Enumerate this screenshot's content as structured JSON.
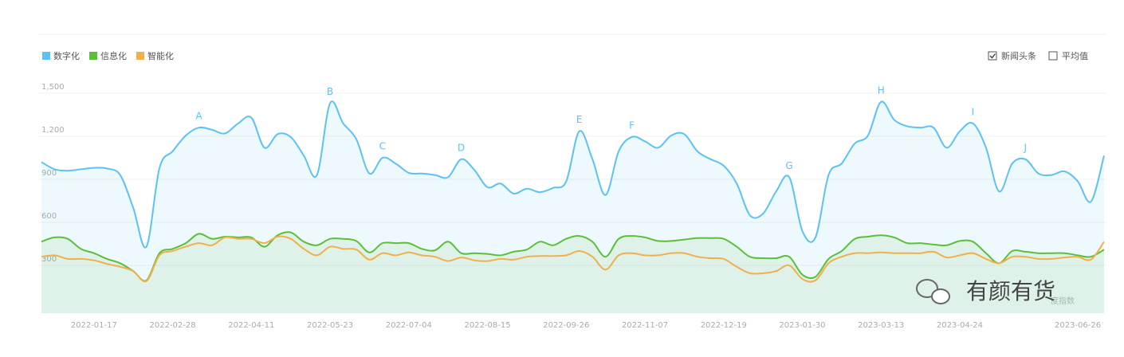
{
  "chart_data": {
    "type": "line",
    "x": [
      "2021-12-20",
      "2021-12-27",
      "2022-01-03",
      "2022-01-10",
      "2022-01-17",
      "2022-01-24",
      "2022-01-31",
      "2022-02-07",
      "2022-02-14",
      "2022-02-21",
      "2022-02-28",
      "2022-03-07",
      "2022-03-14",
      "2022-03-21",
      "2022-03-28",
      "2022-04-04",
      "2022-04-11",
      "2022-04-18",
      "2022-04-25",
      "2022-05-02",
      "2022-05-09",
      "2022-05-16",
      "2022-05-23",
      "2022-05-30",
      "2022-06-06",
      "2022-06-13",
      "2022-06-20",
      "2022-06-27",
      "2022-07-04",
      "2022-07-11",
      "2022-07-18",
      "2022-07-25",
      "2022-08-01",
      "2022-08-08",
      "2022-08-15",
      "2022-08-22",
      "2022-08-29",
      "2022-09-05",
      "2022-09-12",
      "2022-09-19",
      "2022-09-26",
      "2022-10-03",
      "2022-10-10",
      "2022-10-17",
      "2022-10-24",
      "2022-10-31",
      "2022-11-07",
      "2022-11-14",
      "2022-11-21",
      "2022-11-28",
      "2022-12-05",
      "2022-12-12",
      "2022-12-19",
      "2022-12-26",
      "2023-01-02",
      "2023-01-09",
      "2023-01-16",
      "2023-01-23",
      "2023-01-30",
      "2023-02-06",
      "2023-02-13",
      "2023-02-20",
      "2023-02-27",
      "2023-03-06",
      "2023-03-13",
      "2023-03-20",
      "2023-03-27",
      "2023-04-03",
      "2023-04-10",
      "2023-04-17",
      "2023-04-24",
      "2023-05-01",
      "2023-05-08",
      "2023-05-15",
      "2023-05-22",
      "2023-05-29",
      "2023-06-05",
      "2023-06-12",
      "2023-06-19",
      "2023-06-26",
      "2023-07-03",
      "2023-07-10"
    ],
    "series": [
      {
        "name": "数字化",
        "color": "#5bc2f4",
        "fill": "rgba(91,194,244,0.10)",
        "values": [
          1020,
          970,
          960,
          970,
          980,
          975,
          930,
          700,
          430,
          980,
          1095,
          1205,
          1260,
          1245,
          1220,
          1290,
          1330,
          1120,
          1215,
          1195,
          1065,
          930,
          1430,
          1290,
          1180,
          940,
          1050,
          1010,
          945,
          940,
          930,
          915,
          1040,
          965,
          845,
          870,
          800,
          835,
          810,
          840,
          885,
          1235,
          1040,
          790,
          1095,
          1195,
          1165,
          1120,
          1205,
          1215,
          1095,
          1040,
          995,
          870,
          650,
          660,
          815,
          915,
          540,
          495,
          930,
          1010,
          1150,
          1205,
          1440,
          1315,
          1270,
          1260,
          1260,
          1120,
          1235,
          1290,
          1120,
          815,
          1010,
          1040,
          940,
          930,
          955,
          885,
          745,
          1065
        ]
      },
      {
        "name": "信息化",
        "color": "#5cbf3a",
        "fill": "rgba(92,191,58,0.10)",
        "values": [
          465,
          495,
          485,
          415,
          385,
          345,
          315,
          260,
          195,
          385,
          415,
          455,
          520,
          485,
          500,
          495,
          495,
          430,
          510,
          530,
          465,
          440,
          485,
          485,
          470,
          390,
          455,
          455,
          455,
          415,
          405,
          465,
          385,
          385,
          380,
          370,
          395,
          410,
          465,
          440,
          485,
          505,
          465,
          360,
          485,
          505,
          495,
          470,
          470,
          480,
          490,
          490,
          485,
          430,
          360,
          350,
          350,
          360,
          235,
          220,
          345,
          400,
          485,
          500,
          510,
          495,
          455,
          455,
          445,
          440,
          470,
          465,
          385,
          315,
          400,
          395,
          385,
          385,
          385,
          370,
          360,
          410
        ]
      },
      {
        "name": "智能化",
        "color": "#f0b04c",
        "values": [
          360,
          370,
          345,
          345,
          335,
          310,
          290,
          260,
          190,
          370,
          400,
          430,
          455,
          440,
          495,
          485,
          485,
          455,
          500,
          485,
          415,
          370,
          430,
          415,
          410,
          340,
          385,
          370,
          390,
          370,
          360,
          330,
          355,
          335,
          330,
          345,
          340,
          360,
          365,
          365,
          370,
          400,
          360,
          270,
          370,
          385,
          370,
          370,
          385,
          385,
          360,
          350,
          345,
          290,
          245,
          245,
          260,
          300,
          205,
          195,
          315,
          360,
          385,
          385,
          390,
          385,
          385,
          385,
          395,
          355,
          370,
          385,
          345,
          315,
          360,
          360,
          345,
          345,
          355,
          360,
          340,
          465
        ]
      }
    ],
    "xlim": [
      "2021-12-20",
      "2023-07-10"
    ],
    "xticks": [
      "2022-01-17",
      "2022-02-28",
      "2022-04-11",
      "2022-05-23",
      "2022-07-04",
      "2022-08-15",
      "2022-09-26",
      "2022-11-07",
      "2022-12-19",
      "2023-01-30",
      "2023-03-13",
      "2023-04-24",
      "2023-06-26"
    ],
    "ylim": [
      0,
      1500
    ],
    "yticks": [
      300,
      600,
      900,
      {
        "value": 1200,
        "label": "1,200"
      },
      {
        "value": 1500,
        "label": "1,500"
      }
    ],
    "grid": true,
    "annotations": [
      {
        "label": "A",
        "x": "2022-03-14"
      },
      {
        "label": "B",
        "x": "2022-05-23"
      },
      {
        "label": "C",
        "x": "2022-06-20"
      },
      {
        "label": "D",
        "x": "2022-08-01"
      },
      {
        "label": "E",
        "x": "2022-10-03"
      },
      {
        "label": "F",
        "x": "2022-10-31"
      },
      {
        "label": "G",
        "x": "2023-01-23"
      },
      {
        "label": "H",
        "x": "2023-03-13"
      },
      {
        "label": "I",
        "x": "2023-05-01"
      },
      {
        "label": "J",
        "x": "2023-05-29"
      }
    ],
    "toggles": [
      {
        "label": "新闻头条",
        "checked": true
      },
      {
        "label": "平均值",
        "checked": false
      }
    ]
  },
  "watermark": {
    "text": "有颜有货",
    "behind": "度指数"
  }
}
